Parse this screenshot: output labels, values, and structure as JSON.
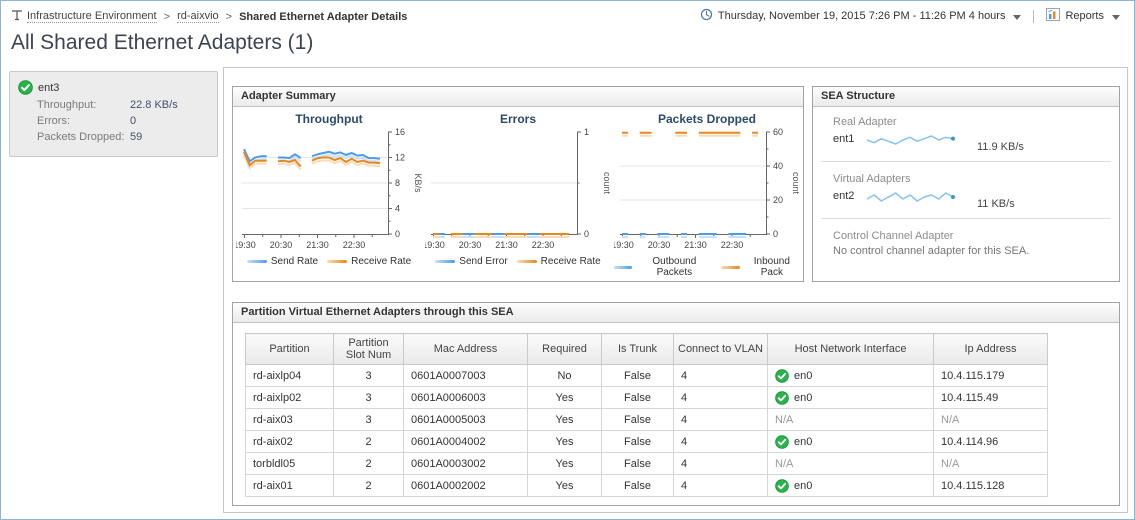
{
  "header": {
    "breadcrumb": [
      "Infrastructure Environment",
      "rd-aixvio",
      "Shared Ethernet Adapter Details"
    ],
    "separator": ">",
    "timerange": "Thursday, November 19, 2015 7:26 PM - 11:26 PM 4 hours",
    "reports_label": "Reports",
    "page_title": "All Shared Ethernet Adapters (1)"
  },
  "summary_card": {
    "name": "ent3",
    "status_icon": "green-check",
    "rows": [
      {
        "label": "Throughput:",
        "value": "22.8 KB/s"
      },
      {
        "label": "Errors:",
        "value": "0"
      },
      {
        "label": "Packets Dropped:",
        "value": "59"
      }
    ]
  },
  "adapter_summary": {
    "title": "Adapter Summary"
  },
  "colors": {
    "blue": "#4d9be8",
    "pale_blue": "#c9e0f6",
    "orange": "#e8871e",
    "pale_orange": "#f8dcba",
    "ok_green": "#29b34a"
  },
  "chart_data": [
    {
      "type": "line",
      "title": "Throughput",
      "ylabel": "KB/s",
      "ylim": [
        0,
        16
      ],
      "yticks": [
        0,
        4,
        8,
        12,
        16
      ],
      "gridlines": [
        4,
        8,
        12
      ],
      "xticklabels": [
        "19:30",
        "20:30",
        "21:30",
        "22:30"
      ],
      "x_range": "7:26 PM - 11:26 PM",
      "legend_position": "bottom",
      "series": [
        {
          "name": "Send Rate",
          "color": "#4d9be8",
          "pale": "#c9e0f6",
          "values": [
            13.3,
            11.4,
            12.0,
            12.2,
            12.2,
            null,
            12.0,
            12.0,
            11.9,
            12.5,
            11.9,
            null,
            12.2,
            12.5,
            12.7,
            12.9,
            12.6,
            12.8,
            12.4,
            12.7,
            12.3,
            12.4,
            11.9,
            11.9,
            11.8
          ]
        },
        {
          "name": "Receive Rate",
          "color": "#e8871e",
          "pale": "#f8dcba",
          "values": [
            12.9,
            10.8,
            11.5,
            11.5,
            11.5,
            null,
            11.4,
            11.5,
            11.3,
            11.6,
            10.6,
            null,
            11.5,
            11.9,
            12.0,
            12.0,
            11.6,
            11.9,
            11.3,
            11.8,
            11.3,
            11.5,
            11.2,
            11.2,
            11.1
          ]
        }
      ]
    },
    {
      "type": "line",
      "title": "Errors",
      "ylabel": "count",
      "ylim": [
        0,
        1
      ],
      "yticks": [
        0,
        1
      ],
      "gridlines": [
        0.5
      ],
      "xticklabels": [
        "19:30",
        "20:30",
        "21:30",
        "22:30"
      ],
      "x_range": "7:26 PM - 11:26 PM",
      "legend_position": "bottom",
      "series": [
        {
          "name": "Send Error",
          "color": "#4d9be8",
          "pale": "#c9e0f6",
          "values": [
            0,
            0,
            0,
            null,
            0,
            0,
            0,
            0,
            null,
            0,
            0,
            0,
            0,
            0,
            0,
            null,
            0,
            0,
            0,
            0,
            0,
            0,
            0,
            0
          ]
        },
        {
          "name": "Receive Rate",
          "color": "#e8871e",
          "pale": "#f8dcba",
          "values": [
            0,
            0,
            null,
            0,
            0,
            0,
            null,
            0,
            0,
            0,
            0,
            null,
            0,
            0,
            0,
            0,
            0,
            null,
            0,
            0,
            0,
            0,
            0,
            0
          ]
        }
      ]
    },
    {
      "type": "line",
      "title": "Packets Dropped",
      "ylabel": "count",
      "ylim": [
        0,
        60
      ],
      "yticks": [
        0,
        20,
        40,
        60
      ],
      "gridlines": [
        20,
        40
      ],
      "xticklabels": [
        "19:30",
        "20:30",
        "21:30",
        "22:30"
      ],
      "x_range": "7:26 PM - 11:26 PM",
      "legend_position": "bottom",
      "series": [
        {
          "name": "Outbound Packets",
          "color": "#4d9be8",
          "pale": "#c9e0f6",
          "values": [
            0,
            0,
            null,
            0,
            0,
            null,
            0,
            0,
            0,
            null,
            0,
            0,
            null,
            0,
            0,
            0,
            0,
            null,
            0,
            0,
            0,
            0,
            null,
            0
          ]
        },
        {
          "name": "Inbound Pack",
          "color": "#e8871e",
          "pale": "#f8dcba",
          "values": [
            59.5,
            59.5,
            null,
            59.5,
            59.5,
            59.5,
            null,
            59.5,
            null,
            59.5,
            59.5,
            59.5,
            null,
            59.5,
            59.5,
            59.5,
            59.5,
            59.5,
            59.5,
            59.5,
            59.5,
            null,
            59.5,
            59.5
          ]
        }
      ]
    }
  ],
  "sea_structure": {
    "title": "SEA Structure",
    "sections": [
      {
        "label": "Real Adapter",
        "name": "ent1",
        "rate": "11.9 KB/s",
        "spark": [
          11.8,
          11.6,
          11.9,
          11.7,
          11.5,
          11.8,
          12.0,
          11.7,
          11.9,
          12.1,
          11.8,
          12.0,
          11.9
        ]
      },
      {
        "label": "Virtual Adapters",
        "name": "ent2",
        "rate": "11 KB/s",
        "spark": [
          10.9,
          11.1,
          10.8,
          11.0,
          11.2,
          10.9,
          11.1,
          10.8,
          11.0,
          11.1,
          10.9,
          11.2,
          11.0
        ]
      },
      {
        "label": "Control Channel Adapter",
        "note": "No control channel adapter for this SEA."
      }
    ]
  },
  "partition_table": {
    "title": "Partition Virtual Ethernet Adapters through this SEA",
    "columns": [
      "Partition",
      "Partition Slot Num",
      "Mac Address",
      "Required",
      "Is Trunk",
      "Connect to VLAN",
      "Host Network Interface",
      "Ip Address"
    ],
    "rows": [
      {
        "partition": "rd-aixlp04",
        "slot": "3",
        "mac": "0601A0007003",
        "required": "No",
        "trunk": "False",
        "vlan": "4",
        "host": {
          "status": "ok",
          "label": "en0"
        },
        "ip": "10.4.115.179"
      },
      {
        "partition": "rd-aixlp02",
        "slot": "3",
        "mac": "0601A0006003",
        "required": "Yes",
        "trunk": "False",
        "vlan": "4",
        "host": {
          "status": "ok",
          "label": "en0"
        },
        "ip": "10.4.115.49"
      },
      {
        "partition": "rd-aix03",
        "slot": "3",
        "mac": "0601A0005003",
        "required": "Yes",
        "trunk": "False",
        "vlan": "4",
        "host": {
          "status": "na",
          "label": "N/A"
        },
        "ip": "N/A"
      },
      {
        "partition": "rd-aix02",
        "slot": "2",
        "mac": "0601A0004002",
        "required": "Yes",
        "trunk": "False",
        "vlan": "4",
        "host": {
          "status": "ok",
          "label": "en0"
        },
        "ip": "10.4.114.96"
      },
      {
        "partition": "torbldl05",
        "slot": "2",
        "mac": "0601A0003002",
        "required": "Yes",
        "trunk": "False",
        "vlan": "4",
        "host": {
          "status": "na",
          "label": "N/A"
        },
        "ip": "N/A"
      },
      {
        "partition": "rd-aix01",
        "slot": "2",
        "mac": "0601A0002002",
        "required": "Yes",
        "trunk": "False",
        "vlan": "4",
        "host": {
          "status": "ok",
          "label": "en0"
        },
        "ip": "10.4.115.128"
      }
    ]
  }
}
